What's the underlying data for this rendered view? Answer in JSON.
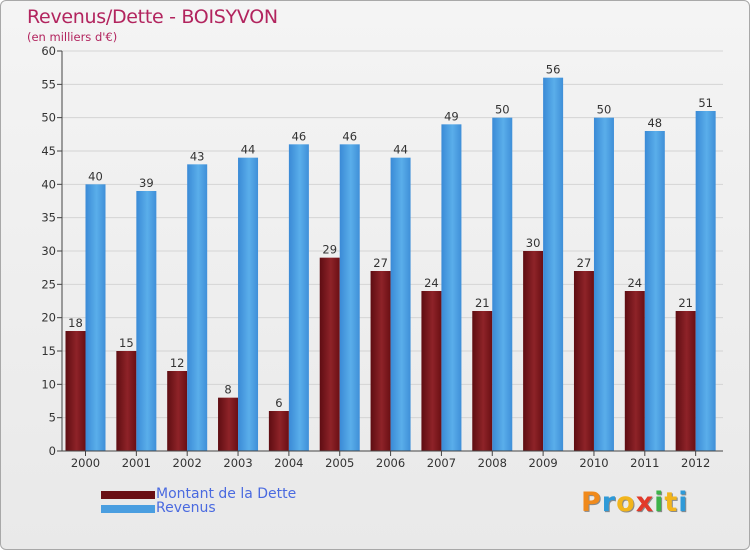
{
  "title": "Revenus/Dette - BOISYVON",
  "subtitle": "(en milliers d'€)",
  "colors": {
    "dette": "#7a1218",
    "revenus": "#4a9ee0",
    "title": "#b2245e"
  },
  "chart_data": {
    "type": "bar",
    "categories": [
      "2000",
      "2001",
      "2002",
      "2003",
      "2004",
      "2005",
      "2006",
      "2007",
      "2008",
      "2009",
      "2010",
      "2011",
      "2012"
    ],
    "series": [
      {
        "name": "Montant de la Dette",
        "values": [
          18,
          15,
          12,
          8,
          6,
          29,
          27,
          24,
          21,
          30,
          27,
          24,
          21
        ]
      },
      {
        "name": "Revenus",
        "values": [
          40,
          39,
          43,
          44,
          46,
          46,
          44,
          49,
          50,
          56,
          50,
          48,
          51
        ]
      }
    ],
    "yticks": [
      0,
      5,
      10,
      15,
      20,
      25,
      30,
      35,
      40,
      45,
      50,
      55,
      60
    ],
    "ylim": [
      0,
      60
    ],
    "xlabel": "",
    "ylabel": "",
    "grid": true,
    "legend_position": "bottom-left"
  },
  "legend": {
    "dette": "Montant de la Dette",
    "revenus": "Revenus"
  },
  "logo": {
    "letters": [
      "P",
      "r",
      "o",
      "x",
      "i",
      "t",
      "i"
    ]
  }
}
